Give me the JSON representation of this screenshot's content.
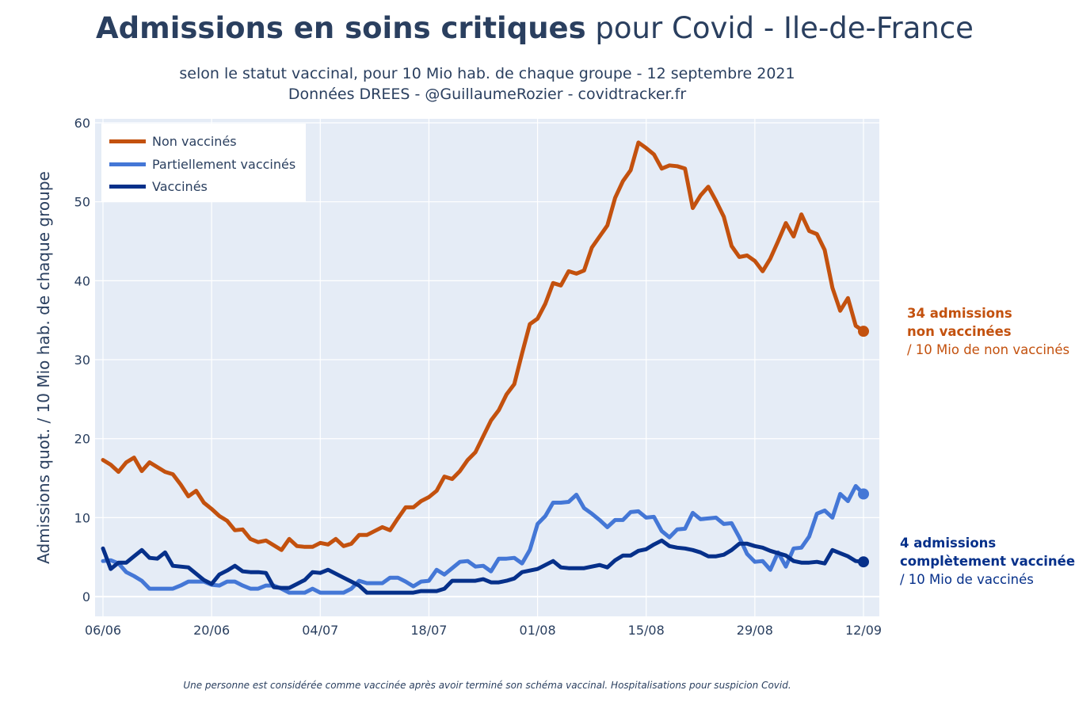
{
  "title": {
    "bold": "Admissions en soins critiques",
    "rest": " pour Covid - Ile-de-France"
  },
  "subtitle": {
    "line1": "selon le statut vaccinal, pour 10 Mio hab. de chaque groupe - 12 septembre 2021",
    "line2": "Données DREES - @GuillaumeRozier - covidtracker.fr"
  },
  "footnote": "Une personne est considérée comme vaccinée après avoir terminé son schéma vaccinal. Hospitalisations pour suspicion Covid.",
  "annotations": {
    "non_vax": {
      "line1": "34 admissions",
      "line2": "non vaccinées",
      "line3": "/ 10 Mio de non vaccinés"
    },
    "vax": {
      "line1": "4 admissions",
      "line2": "complètement vaccinée",
      "line3": "/ 10 Mio de vaccinés"
    }
  },
  "colors": {
    "non_vax": "#c3510e",
    "partial": "#4477d6",
    "vax": "#06308a",
    "plot_bg": "#e5ecf6"
  },
  "chart_data": {
    "type": "line",
    "ylabel": "Admissions quot. / 10 Mio hab. de chaque groupe",
    "xlabel": "",
    "ylim": [
      -2.5,
      60.5
    ],
    "yticks": [
      0,
      10,
      20,
      30,
      40,
      50,
      60
    ],
    "x_start": "06/06",
    "x_end": "12/09",
    "xticks": [
      "06/06",
      "20/06",
      "04/07",
      "18/07",
      "01/08",
      "15/08",
      "29/08",
      "12/09"
    ],
    "grid": true,
    "legend_position": "top-left",
    "series": [
      {
        "name": "Non vaccinés",
        "color": "#c3510e",
        "values": [
          17.3,
          16.7,
          15.8,
          17.0,
          17.6,
          15.9,
          17.0,
          16.4,
          15.8,
          15.5,
          14.2,
          12.7,
          13.4,
          11.9,
          11.1,
          10.2,
          9.6,
          8.4,
          8.5,
          7.3,
          6.9,
          7.1,
          6.5,
          5.9,
          7.3,
          6.4,
          6.3,
          6.3,
          6.8,
          6.6,
          7.3,
          6.4,
          6.7,
          7.8,
          7.8,
          8.3,
          8.8,
          8.4,
          9.9,
          11.3,
          11.3,
          12.1,
          12.6,
          13.4,
          15.2,
          14.9,
          15.9,
          17.3,
          18.3,
          20.3,
          22.3,
          23.6,
          25.6,
          26.9,
          30.8,
          34.5,
          35.2,
          37.1,
          39.7,
          39.4,
          41.2,
          40.9,
          41.3,
          44.2,
          45.6,
          47.0,
          50.5,
          52.6,
          54.0,
          57.5,
          56.8,
          56.0,
          54.2,
          54.6,
          54.5,
          54.2,
          49.2,
          50.8,
          51.9,
          50.1,
          48.1,
          44.4,
          43.0,
          43.2,
          42.5,
          41.2,
          42.8,
          45.0,
          47.3,
          45.6,
          48.4,
          46.3,
          45.9,
          43.9,
          39.1,
          36.2,
          37.8,
          34.3,
          33.6
        ]
      },
      {
        "name": "Partiellement vaccinés",
        "color": "#4477d6",
        "values": [
          4.5,
          4.6,
          4.2,
          3.1,
          2.6,
          2.0,
          1.0,
          1.0,
          1.0,
          1.0,
          1.4,
          1.9,
          1.9,
          1.9,
          1.5,
          1.4,
          1.9,
          1.9,
          1.4,
          1.0,
          1.0,
          1.4,
          1.4,
          1.0,
          0.5,
          0.5,
          0.5,
          1.0,
          0.5,
          0.5,
          0.5,
          0.5,
          1.0,
          2.0,
          1.7,
          1.7,
          1.7,
          2.4,
          2.4,
          1.9,
          1.3,
          1.9,
          2.0,
          3.4,
          2.8,
          3.6,
          4.4,
          4.5,
          3.8,
          3.9,
          3.2,
          4.8,
          4.8,
          4.9,
          4.2,
          5.9,
          9.2,
          10.2,
          11.9,
          11.9,
          12.0,
          12.9,
          11.2,
          10.5,
          9.7,
          8.8,
          9.7,
          9.7,
          10.7,
          10.8,
          10.0,
          10.1,
          8.3,
          7.5,
          8.5,
          8.6,
          10.6,
          9.8,
          9.9,
          10.0,
          9.2,
          9.3,
          7.5,
          5.4,
          4.4,
          4.5,
          3.4,
          5.6,
          3.8,
          6.1,
          6.2,
          7.6,
          10.5,
          10.9,
          10.0,
          13.0,
          12.1,
          14.0,
          13.0
        ]
      },
      {
        "name": "Vaccinés",
        "color": "#06308a",
        "values": [
          6.1,
          3.5,
          4.3,
          4.3,
          5.1,
          5.9,
          4.9,
          4.8,
          5.6,
          3.9,
          3.8,
          3.7,
          2.9,
          2.1,
          1.6,
          2.8,
          3.3,
          3.9,
          3.2,
          3.1,
          3.1,
          3.0,
          1.2,
          1.1,
          1.1,
          1.6,
          2.1,
          3.1,
          3.0,
          3.4,
          2.9,
          2.4,
          1.9,
          1.4,
          0.5,
          0.5,
          0.5,
          0.5,
          0.5,
          0.5,
          0.5,
          0.7,
          0.7,
          0.7,
          1.0,
          2.0,
          2.0,
          2.0,
          2.0,
          2.2,
          1.8,
          1.8,
          2.0,
          2.3,
          3.1,
          3.3,
          3.5,
          4.0,
          4.5,
          3.7,
          3.6,
          3.6,
          3.6,
          3.8,
          4.0,
          3.7,
          4.6,
          5.2,
          5.2,
          5.8,
          6.0,
          6.6,
          7.1,
          6.4,
          6.2,
          6.1,
          5.9,
          5.6,
          5.1,
          5.1,
          5.3,
          5.9,
          6.7,
          6.7,
          6.4,
          6.2,
          5.8,
          5.5,
          5.2,
          4.5,
          4.3,
          4.3,
          4.4,
          4.2,
          5.9,
          5.5,
          5.1,
          4.5,
          4.4
        ]
      }
    ]
  }
}
